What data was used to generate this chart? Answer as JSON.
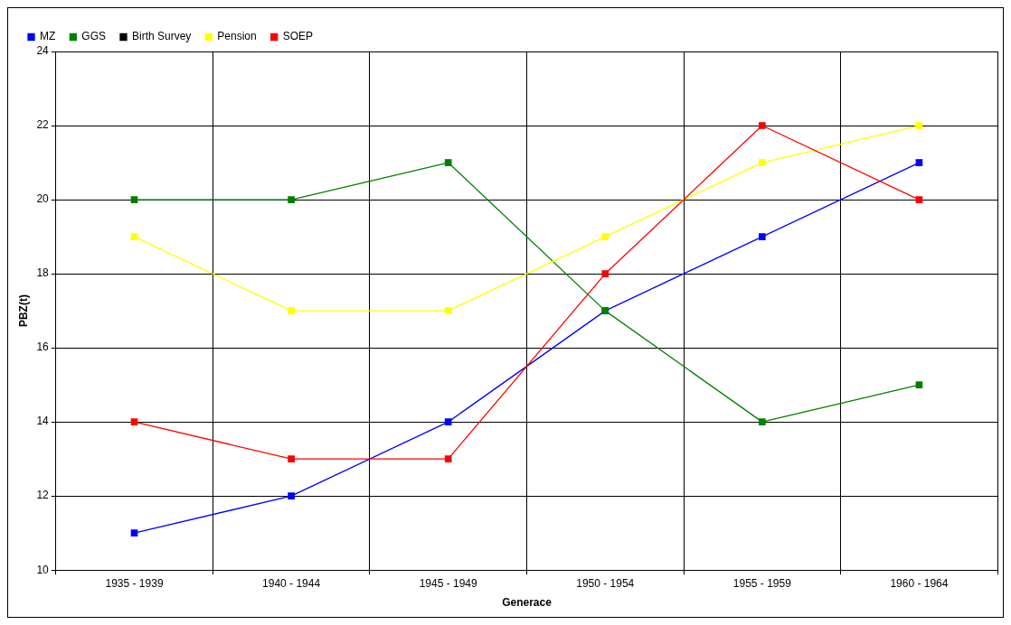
{
  "chart_data": {
    "type": "line",
    "xlabel": "Generace",
    "ylabel": "PBZ(t)",
    "categories": [
      "1935 - 1939",
      "1940 - 1944",
      "1945 - 1949",
      "1950 - 1954",
      "1955 - 1959",
      "1960 - 1964"
    ],
    "series": [
      {
        "name": "MZ",
        "color": "#0000ff",
        "values": [
          11,
          12,
          14,
          17,
          19,
          21
        ]
      },
      {
        "name": "GGS",
        "color": "#008000",
        "values": [
          20,
          20,
          21,
          17,
          14,
          15
        ]
      },
      {
        "name": "Birth Survey",
        "color": "#000000",
        "values": [
          null,
          null,
          null,
          null,
          null,
          null
        ]
      },
      {
        "name": "Pension",
        "color": "#ffff00",
        "values": [
          19,
          17,
          17,
          19,
          21,
          22
        ]
      },
      {
        "name": "SOEP",
        "color": "#ff0000",
        "values": [
          14,
          13,
          13,
          18,
          22,
          20
        ]
      }
    ],
    "ylim": [
      10,
      24
    ],
    "yticks": [
      10,
      12,
      14,
      16,
      18,
      20,
      22,
      24
    ],
    "grid": true,
    "legend": "top left",
    "marker": "square",
    "line_style": "solid"
  }
}
